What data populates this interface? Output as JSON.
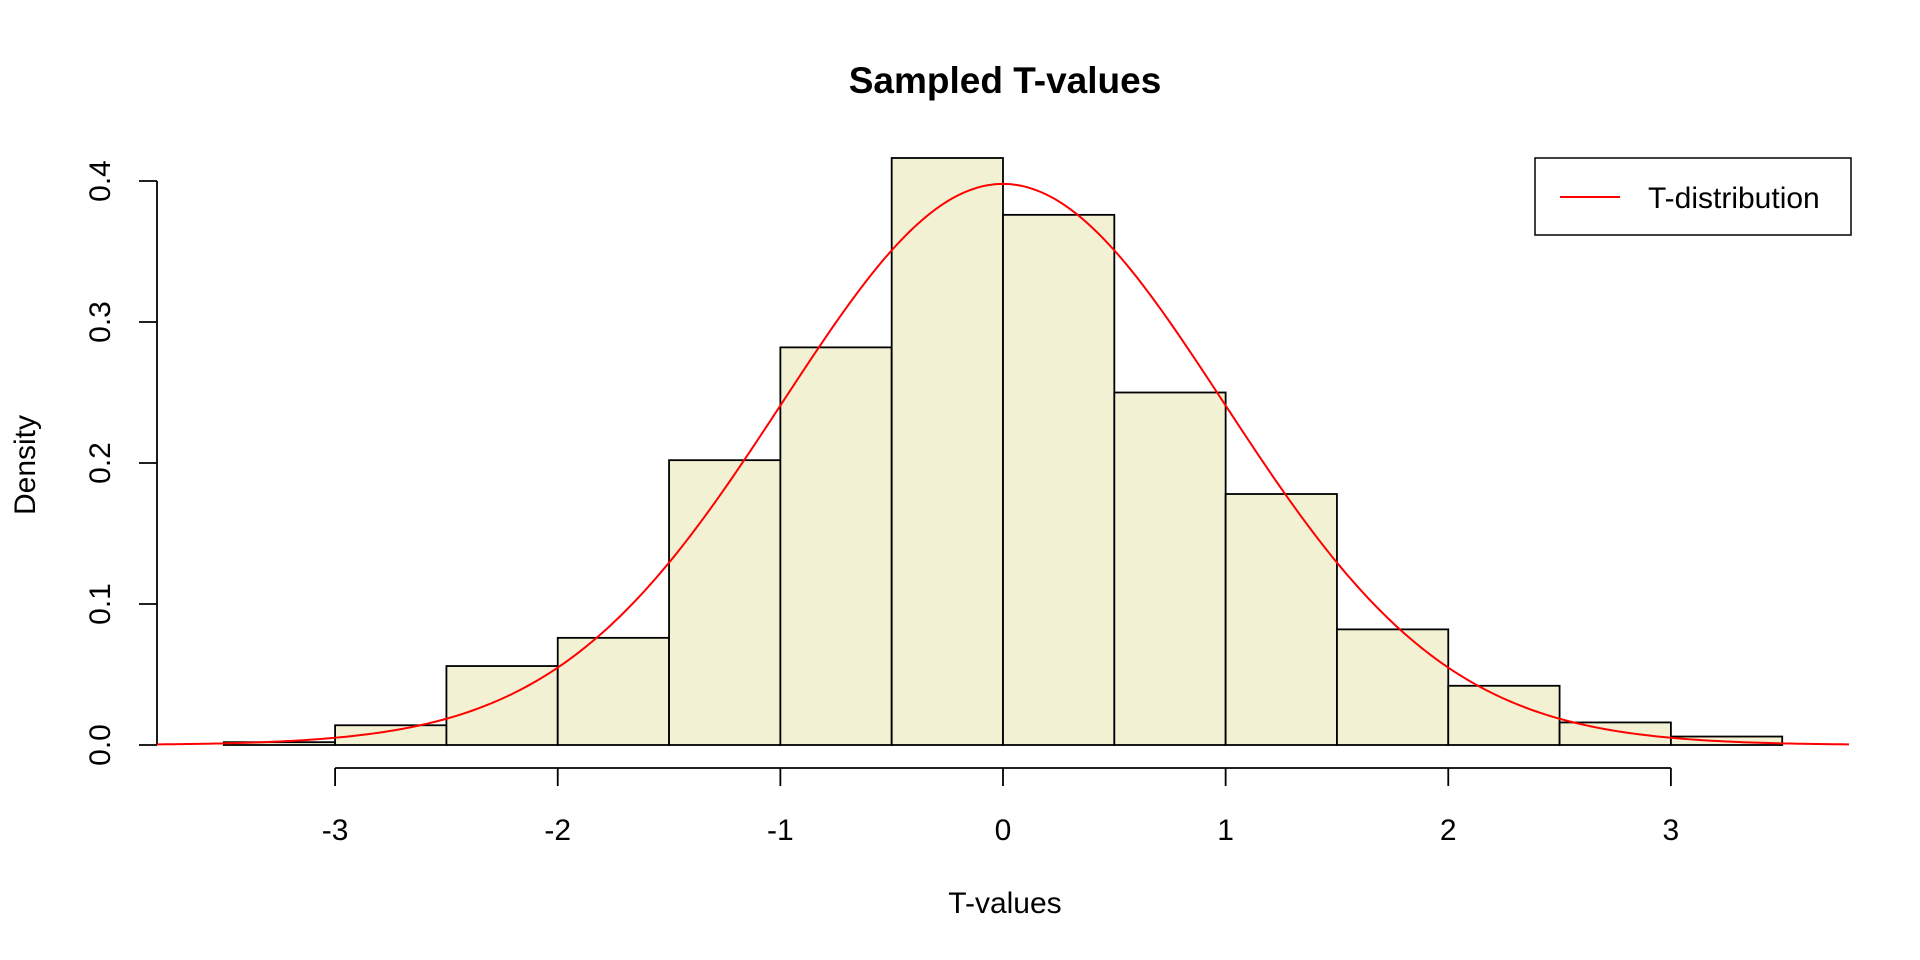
{
  "chart_data": {
    "type": "bar",
    "title": "Sampled T-values",
    "xlabel": "T-values",
    "ylabel": "Density",
    "xlim": [
      -3.8,
      3.8
    ],
    "ylim": [
      0,
      0.4
    ],
    "x_ticks": [
      "-3",
      "-2",
      "-1",
      "0",
      "1",
      "2",
      "3"
    ],
    "y_ticks": [
      "0.0",
      "0.1",
      "0.2",
      "0.3",
      "0.4"
    ],
    "bins": [
      {
        "from": -3.5,
        "to": -3.0,
        "density": 0.002
      },
      {
        "from": -3.0,
        "to": -2.5,
        "density": 0.014
      },
      {
        "from": -2.5,
        "to": -2.0,
        "density": 0.056
      },
      {
        "from": -2.0,
        "to": -1.5,
        "density": 0.076
      },
      {
        "from": -1.5,
        "to": -1.0,
        "density": 0.202
      },
      {
        "from": -1.0,
        "to": -0.5,
        "density": 0.282
      },
      {
        "from": -0.5,
        "to": 0.0,
        "density": 0.42
      },
      {
        "from": 0.0,
        "to": 0.5,
        "density": 0.376
      },
      {
        "from": 0.5,
        "to": 1.0,
        "density": 0.25
      },
      {
        "from": 1.0,
        "to": 1.5,
        "density": 0.178
      },
      {
        "from": 1.5,
        "to": 2.0,
        "density": 0.082
      },
      {
        "from": 2.0,
        "to": 2.5,
        "density": 0.042
      },
      {
        "from": 2.5,
        "to": 3.0,
        "density": 0.016
      },
      {
        "from": 3.0,
        "to": 3.5,
        "density": 0.006
      }
    ],
    "bar_fill": "#f3f1d4",
    "bar_stroke": "#000000",
    "series": [
      {
        "name": "T-distribution",
        "type": "line",
        "color": "#ff0000",
        "distribution": "t",
        "df": 100,
        "x_range": [
          -3.8,
          3.8
        ]
      }
    ],
    "legend": {
      "position": "top-right",
      "entries": [
        "T-distribution"
      ]
    },
    "grid": false
  }
}
